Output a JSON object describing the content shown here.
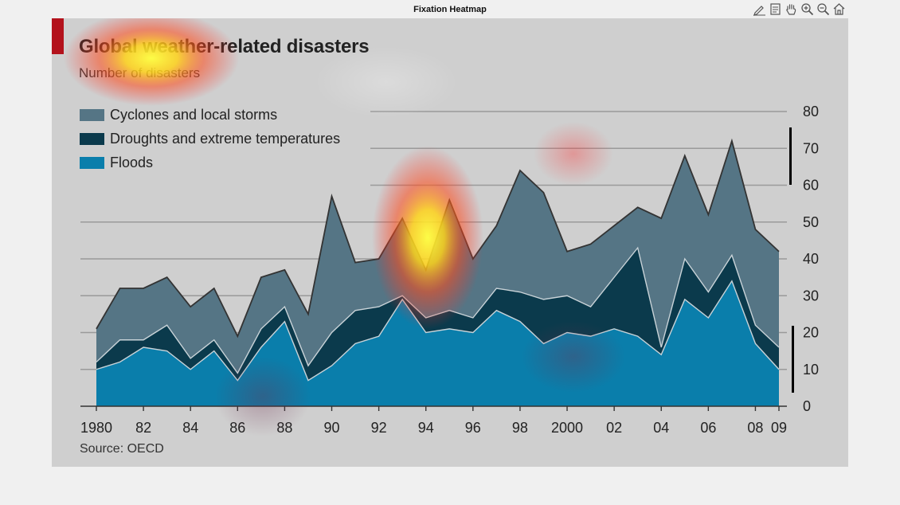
{
  "window": {
    "title": "Fixation Heatmap"
  },
  "toolbar": {
    "tools": [
      {
        "icon": "edit-plot-icon"
      },
      {
        "icon": "data-cursor-icon"
      },
      {
        "icon": "pan-hand-icon"
      },
      {
        "icon": "zoom-in-icon"
      },
      {
        "icon": "zoom-out-icon"
      },
      {
        "icon": "home-icon"
      }
    ]
  },
  "colors": {
    "cyclones": "#557585",
    "droughts": "#0b3a4c",
    "floods": "#0a7eab",
    "accent_red": "#b3121c",
    "background": "#cfcfcf"
  },
  "chart_data": {
    "type": "area",
    "stacked": true,
    "title": "Global weather-related disasters",
    "subtitle": "Number of disasters",
    "source": "Source: OECD",
    "x": [
      1980,
      1981,
      1982,
      1983,
      1984,
      1985,
      1986,
      1987,
      1988,
      1989,
      1990,
      1991,
      1992,
      1993,
      1994,
      1995,
      1996,
      1997,
      1998,
      1999,
      2000,
      2001,
      2002,
      2003,
      2004,
      2005,
      2006,
      2007,
      2008,
      2009
    ],
    "xtick_values": [
      1980,
      1982,
      1984,
      1986,
      1988,
      1990,
      1992,
      1994,
      1996,
      1998,
      2000,
      2002,
      2004,
      2006,
      2008,
      2009
    ],
    "xtick_labels": [
      "1980",
      "82",
      "84",
      "86",
      "88",
      "90",
      "92",
      "94",
      "96",
      "98",
      "2000",
      "02",
      "04",
      "06",
      "08",
      "09"
    ],
    "yticks": [
      0,
      10,
      20,
      30,
      40,
      50,
      60,
      70,
      80
    ],
    "ylim": [
      0,
      80
    ],
    "y_axis_side": "right",
    "grid": true,
    "legend_position": "top-left",
    "series": [
      {
        "name": "Floods",
        "key": "floods",
        "cumulative": [
          10,
          12,
          16,
          15,
          10,
          15,
          7,
          16,
          23,
          7,
          11,
          17,
          19,
          29,
          20,
          21,
          20,
          26,
          23,
          17,
          20,
          19,
          21,
          19,
          14,
          29,
          24,
          34,
          17,
          10
        ]
      },
      {
        "name": "Droughts and extreme temperatures",
        "key": "droughts",
        "cumulative": [
          12,
          18,
          18,
          22,
          13,
          18,
          9,
          21,
          27,
          11,
          20,
          26,
          27,
          30,
          24,
          26,
          24,
          32,
          31,
          29,
          30,
          27,
          35,
          43,
          16,
          40,
          31,
          41,
          22,
          16
        ]
      },
      {
        "name": "Cyclones and local storms",
        "key": "cyclones",
        "cumulative": [
          21,
          32,
          32,
          35,
          27,
          32,
          19,
          35,
          37,
          25,
          57,
          39,
          40,
          51,
          37,
          56,
          40,
          49,
          64,
          58,
          42,
          44,
          49,
          54,
          51,
          68,
          52,
          72,
          48,
          42
        ]
      }
    ],
    "legend": [
      "Cyclones and local storms",
      "Droughts and extreme temperatures",
      "Floods"
    ]
  }
}
